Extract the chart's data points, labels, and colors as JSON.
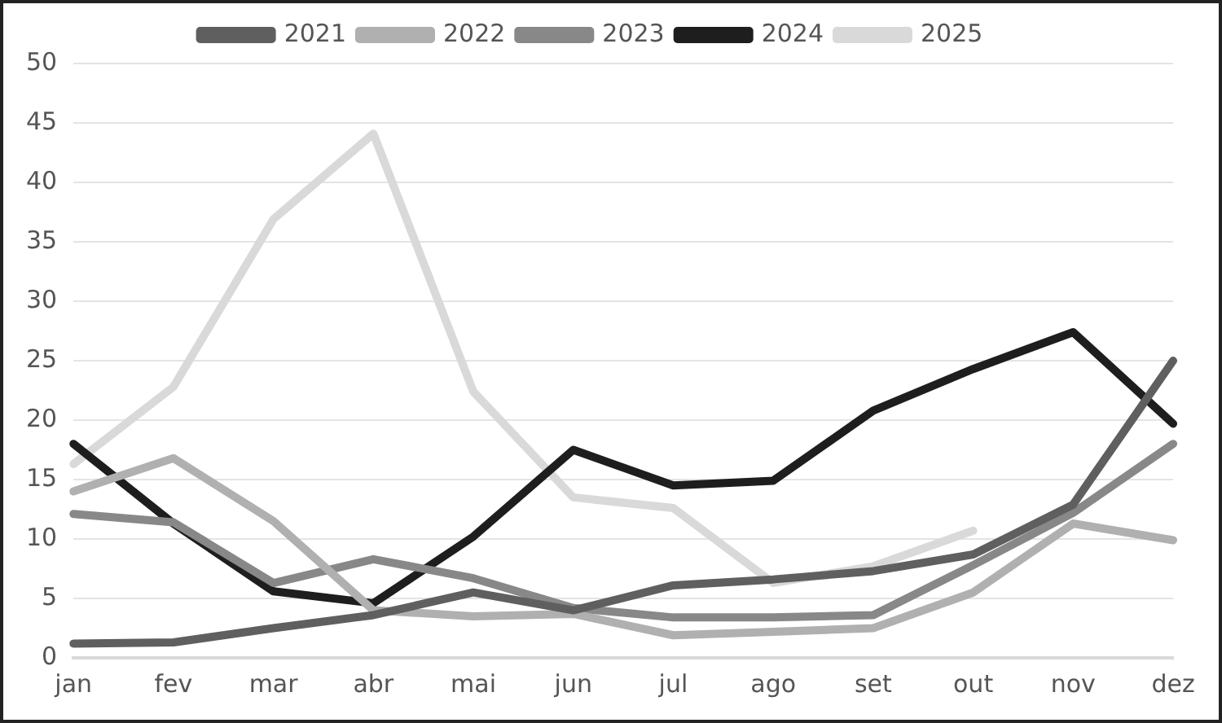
{
  "chart_data": {
    "type": "line",
    "categories": [
      "jan",
      "fev",
      "mar",
      "abr",
      "mai",
      "jun",
      "jul",
      "ago",
      "set",
      "out",
      "nov",
      "dez"
    ],
    "series": [
      {
        "name": "2021",
        "color": "#5f5f5f",
        "values": [
          1.2,
          1.3,
          2.5,
          3.6,
          5.5,
          4,
          6.1,
          6.6,
          7.3,
          8.7,
          12.9,
          25
        ]
      },
      {
        "name": "2022",
        "color": "#b0b0b0",
        "values": [
          14,
          16.8,
          11.5,
          4,
          3.5,
          3.7,
          1.9,
          2.2,
          2.5,
          5.5,
          11.3,
          9.9
        ]
      },
      {
        "name": "2023",
        "color": "#888888",
        "values": [
          12.1,
          11.4,
          6.3,
          8.3,
          6.7,
          4.2,
          3.4,
          3.4,
          3.6,
          7.8,
          12.2,
          18
        ]
      },
      {
        "name": "2024",
        "color": "#1e1e1e",
        "values": [
          18,
          11.3,
          5.6,
          4.6,
          10.2,
          17.5,
          14.5,
          14.9,
          20.8,
          24.3,
          27.4,
          19.7
        ]
      },
      {
        "name": "2025",
        "color": "#d9d9d9",
        "values": [
          16.3,
          22.8,
          36.9,
          44.1,
          22.4,
          13.5,
          12.6,
          6.3,
          7.7,
          10.7,
          null,
          null
        ]
      }
    ],
    "ylim": [
      0,
      50
    ],
    "yticks": [
      0,
      5,
      10,
      15,
      20,
      25,
      30,
      35,
      40,
      45,
      50
    ],
    "grid": "y",
    "legend": "top",
    "marker": "none",
    "line_style": "solid"
  }
}
